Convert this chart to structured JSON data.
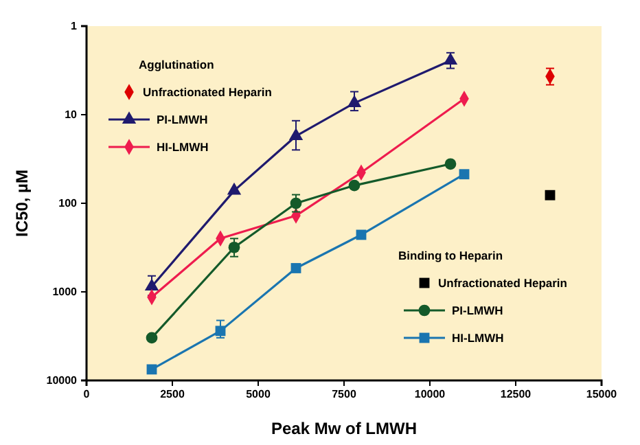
{
  "chart_data": {
    "type": "line",
    "xlabel": "Peak Mw of LMWH",
    "ylabel": "IC50, µM",
    "log": "y",
    "grid": false,
    "legend": "left",
    "xlim": [
      0,
      15000
    ],
    "xticks": [
      0,
      2500,
      5000,
      7500,
      10000,
      12500,
      15000
    ],
    "ylim": [
      10000,
      1
    ],
    "yticks": [
      1,
      10,
      100,
      1000,
      10000
    ],
    "annotations": [
      "Agglutination",
      "Binding to Heparin"
    ],
    "series": [
      {
        "name": "Unfractionated Heparin",
        "type": "scatter",
        "marker": "diamond",
        "color": "#dd0000",
        "x": [
          13500
        ],
        "values": [
          3.7
        ],
        "errors": [
          [
            3,
            4.6
          ]
        ]
      },
      {
        "name": "PI-LMWH",
        "marker": "triangle",
        "color": "#1f1a6e",
        "x": [
          1900,
          4300,
          6100,
          7800,
          10600
        ],
        "values": [
          870,
          72,
          17.4,
          7.4,
          2.45
        ],
        "errors": [
          [
            660,
            1100
          ],
          null,
          [
            11.7,
            25
          ],
          [
            5.5,
            9
          ],
          [
            2,
            3
          ]
        ]
      },
      {
        "name": "HI-LMWH",
        "marker": "diamond",
        "color": "#ee1c4e",
        "x": [
          1900,
          3900,
          6100,
          8000,
          11000
        ],
        "values": [
          1150,
          250,
          138,
          45,
          6.6
        ]
      },
      {
        "name": "Unfractionated Heparin",
        "type": "scatter",
        "marker": "square",
        "color": "#000000",
        "x": [
          13500
        ],
        "values": [
          81
        ]
      },
      {
        "name": "PI-LMWH",
        "marker": "circle",
        "color": "#145a2a",
        "x": [
          1900,
          4300,
          6100,
          7800,
          10600
        ],
        "values": [
          3300,
          315,
          100,
          63,
          36
        ],
        "errors": [
          null,
          [
            250,
            400
          ],
          [
            80,
            125
          ],
          null,
          null
        ]
      },
      {
        "name": "HI-LMWH",
        "marker": "square",
        "color": "#1a75b0",
        "x": [
          1900,
          3900,
          6100,
          8000,
          11000
        ],
        "values": [
          7500,
          2760,
          540,
          227,
          47
        ],
        "errors": [
          null,
          [
            2100,
            3300
          ],
          null,
          null,
          null
        ]
      }
    ]
  }
}
